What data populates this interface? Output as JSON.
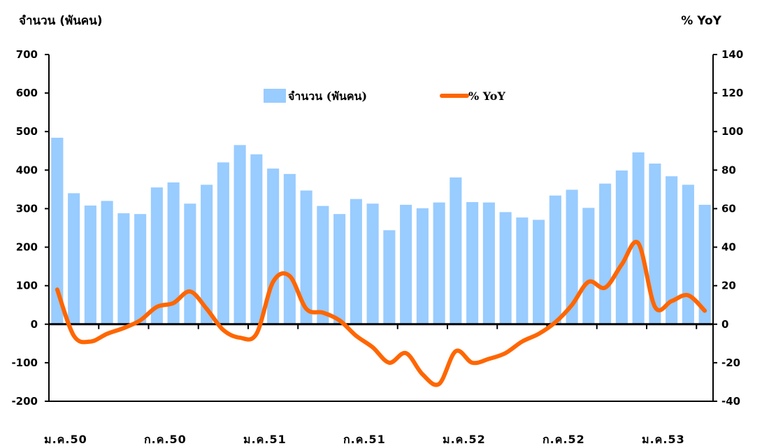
{
  "chart_data": {
    "type": "bar+line",
    "left_axis_title": "จำนวน (พันคน)",
    "right_axis_title": "% YoY",
    "left_ylim": [
      -200,
      700
    ],
    "left_ticks": [
      "-200",
      "-100",
      "0",
      "100",
      "200",
      "300",
      "400",
      "500",
      "600",
      "700"
    ],
    "right_ylim": [
      -40,
      140
    ],
    "right_ticks": [
      "-40",
      "-20",
      "0",
      "20",
      "40",
      "60",
      "80",
      "100",
      "120",
      "140"
    ],
    "x_tick_labels": [
      "ม.ค.50",
      "ก.ค.50",
      "ม.ค.51",
      "ก.ค.51",
      "ม.ค.52",
      "ก.ค.52",
      "ม.ค.53"
    ],
    "grid": false,
    "legend_position": "top-center",
    "series": [
      {
        "name": "จำนวน (พันคน)",
        "type": "bar",
        "axis": "left",
        "color": "#99CCFF",
        "values": [
          484,
          340,
          308,
          320,
          288,
          286,
          355,
          368,
          313,
          362,
          420,
          465,
          441,
          404,
          390,
          347,
          307,
          286,
          325,
          313,
          244,
          310,
          301,
          316,
          381,
          317,
          316,
          291,
          277,
          271,
          334,
          349,
          302,
          365,
          399,
          446,
          417,
          384,
          362,
          310
        ]
      },
      {
        "name": "% YoY",
        "type": "line",
        "axis": "right",
        "color": "#FF6600",
        "values": [
          18,
          -6,
          -9,
          -5,
          -2,
          2,
          9,
          11,
          17,
          8,
          -3,
          -7,
          -5,
          22,
          25,
          8,
          6,
          2,
          -6,
          -12,
          -20,
          -15,
          -26,
          -31,
          -14,
          -20,
          -18,
          -15,
          -9,
          -5,
          1,
          10,
          22,
          19,
          31,
          42,
          9,
          12,
          15,
          7
        ]
      }
    ]
  }
}
